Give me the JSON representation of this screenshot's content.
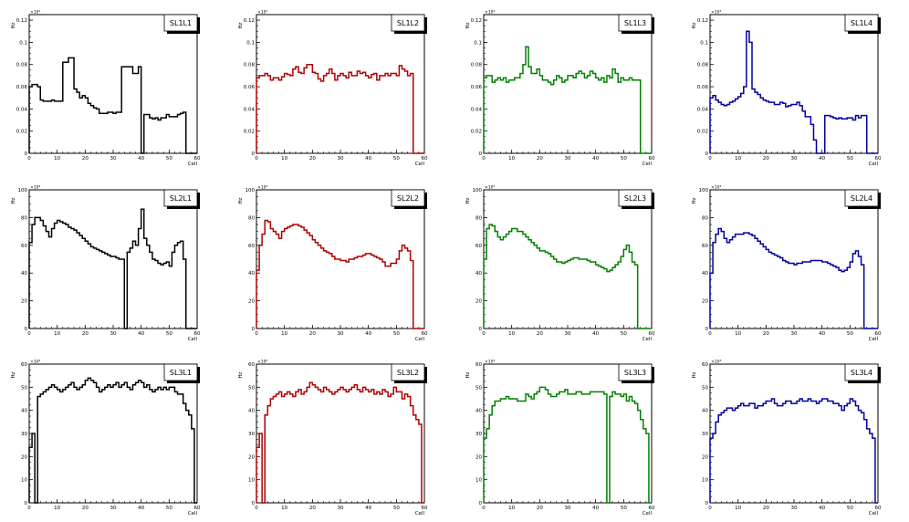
{
  "chart_data": [
    {
      "type": "line",
      "title": "SL1L1",
      "color": "#000000",
      "xlabel": "Cell",
      "ylabel": "Hz",
      "exponent": "×10³",
      "xlim": [
        0,
        60
      ],
      "ylim": [
        0,
        0.125
      ],
      "xticks": [
        0,
        10,
        20,
        30,
        40,
        50,
        60
      ],
      "yticks": [
        0,
        0.02,
        0.04,
        0.06,
        0.08,
        0.1,
        0.12
      ],
      "ytick_labels": [
        "0",
        "0.02",
        "0.04",
        "0.06",
        "0.08",
        "0.1",
        "0.12"
      ],
      "values": [
        0.06,
        0.062,
        0.062,
        0.06,
        0.048,
        0.047,
        0.047,
        0.047,
        0.048,
        0.047,
        0.047,
        0.047,
        0.082,
        0.082,
        0.086,
        0.086,
        0.058,
        0.055,
        0.05,
        0.052,
        0.05,
        0.045,
        0.043,
        0.041,
        0.04,
        0.036,
        0.036,
        0.036,
        0.037,
        0.037,
        0.036,
        0.037,
        0.037,
        0.078,
        0.078,
        0.078,
        0.078,
        0.072,
        0.072,
        0.078,
        0,
        0.035,
        0.035,
        0.032,
        0.031,
        0.032,
        0.03,
        0.032,
        0.032,
        0.035,
        0.033,
        0.033,
        0.033,
        0.035,
        0.036,
        0.037,
        0,
        0,
        0,
        0
      ]
    },
    {
      "type": "line",
      "title": "SL1L2",
      "color": "#b00000",
      "xlabel": "Cell",
      "ylabel": "Hz",
      "exponent": "×10³",
      "xlim": [
        0,
        60
      ],
      "ylim": [
        0,
        0.125
      ],
      "xticks": [
        0,
        10,
        20,
        30,
        40,
        50,
        60
      ],
      "yticks": [
        0,
        0.02,
        0.04,
        0.06,
        0.08,
        0.1,
        0.12
      ],
      "ytick_labels": [
        "0",
        "0.02",
        "0.04",
        "0.06",
        "0.08",
        "0.1",
        "0.12"
      ],
      "values": [
        0.068,
        0.07,
        0.07,
        0.072,
        0.07,
        0.066,
        0.068,
        0.068,
        0.066,
        0.069,
        0.072,
        0.071,
        0.07,
        0.076,
        0.078,
        0.073,
        0.072,
        0.077,
        0.08,
        0.08,
        0.073,
        0.072,
        0.067,
        0.065,
        0.07,
        0.072,
        0.076,
        0.072,
        0.066,
        0.07,
        0.072,
        0.07,
        0.068,
        0.073,
        0.07,
        0.07,
        0.074,
        0.072,
        0.073,
        0.07,
        0.068,
        0.071,
        0.072,
        0.066,
        0.07,
        0.07,
        0.072,
        0.07,
        0.072,
        0.072,
        0.07,
        0.079,
        0.076,
        0.074,
        0.07,
        0.072,
        0,
        0,
        0,
        0
      ]
    },
    {
      "type": "line",
      "title": "SL1L3",
      "color": "#008000",
      "xlabel": "Cell",
      "ylabel": "Hz",
      "exponent": "×10³",
      "xlim": [
        0,
        60
      ],
      "ylim": [
        0,
        0.125
      ],
      "xticks": [
        0,
        10,
        20,
        30,
        40,
        50,
        60
      ],
      "yticks": [
        0,
        0.02,
        0.04,
        0.06,
        0.08,
        0.1,
        0.12
      ],
      "ytick_labels": [
        "0",
        "0.02",
        "0.04",
        "0.06",
        "0.08",
        "0.1",
        "0.12"
      ],
      "values": [
        0.068,
        0.07,
        0.07,
        0.064,
        0.066,
        0.068,
        0.066,
        0.068,
        0.064,
        0.066,
        0.066,
        0.068,
        0.068,
        0.072,
        0.08,
        0.096,
        0.078,
        0.072,
        0.072,
        0.076,
        0.07,
        0.066,
        0.066,
        0.064,
        0.062,
        0.066,
        0.07,
        0.068,
        0.064,
        0.066,
        0.07,
        0.07,
        0.068,
        0.072,
        0.074,
        0.072,
        0.068,
        0.07,
        0.074,
        0.072,
        0.068,
        0.066,
        0.068,
        0.064,
        0.07,
        0.068,
        0.076,
        0.072,
        0.064,
        0.068,
        0.066,
        0.066,
        0.068,
        0.066,
        0.066,
        0.066,
        0,
        0,
        0,
        0
      ]
    },
    {
      "type": "line",
      "title": "SL1L4",
      "color": "#0000a0",
      "xlabel": "Cell",
      "ylabel": "Hz",
      "exponent": "×10³",
      "xlim": [
        0,
        60
      ],
      "ylim": [
        0,
        0.125
      ],
      "xticks": [
        0,
        10,
        20,
        30,
        40,
        50,
        60
      ],
      "yticks": [
        0,
        0.02,
        0.04,
        0.06,
        0.08,
        0.1,
        0.12
      ],
      "ytick_labels": [
        "0",
        "0.02",
        "0.04",
        "0.06",
        "0.08",
        "0.1",
        "0.12"
      ],
      "values": [
        0.05,
        0.052,
        0.048,
        0.046,
        0.044,
        0.043,
        0.044,
        0.046,
        0.047,
        0.049,
        0.051,
        0.054,
        0.06,
        0.11,
        0.1,
        0.058,
        0.055,
        0.053,
        0.05,
        0.048,
        0.047,
        0.046,
        0.046,
        0.044,
        0.044,
        0.046,
        0.045,
        0.042,
        0.043,
        0.044,
        0.044,
        0.046,
        0.043,
        0.038,
        0.033,
        0.033,
        0.026,
        0.012,
        0,
        0,
        0,
        0.034,
        0.034,
        0.033,
        0.032,
        0.031,
        0.032,
        0.031,
        0.031,
        0.032,
        0.032,
        0.03,
        0.034,
        0.032,
        0.034,
        0.034,
        0,
        0,
        0,
        0
      ]
    },
    {
      "type": "line",
      "title": "SL2L1",
      "color": "#000000",
      "xlabel": "Cell",
      "ylabel": "Hz",
      "exponent": "×10³",
      "xlim": [
        0,
        60
      ],
      "ylim": [
        0,
        100
      ],
      "xticks": [
        0,
        10,
        20,
        30,
        40,
        50,
        60
      ],
      "yticks": [
        0,
        20,
        40,
        60,
        80,
        100
      ],
      "ytick_labels": [
        "0",
        "20",
        "40",
        "60",
        "80",
        "100"
      ],
      "values": [
        62,
        75,
        80,
        80,
        78,
        74,
        70,
        66,
        72,
        76,
        78,
        77,
        76,
        75,
        73,
        72,
        71,
        69,
        67,
        65,
        63,
        61,
        59,
        58,
        57,
        56,
        55,
        54,
        53,
        52,
        52,
        51,
        50,
        50,
        0,
        55,
        58,
        63,
        60,
        72,
        86,
        65,
        60,
        55,
        50,
        49,
        47,
        46,
        47,
        48,
        45,
        55,
        60,
        62,
        63,
        50,
        0,
        0,
        0,
        0
      ]
    },
    {
      "type": "line",
      "title": "SL2L2",
      "color": "#b00000",
      "xlabel": "Cell",
      "ylabel": "Hz",
      "exponent": "×10³",
      "xlim": [
        0,
        60
      ],
      "ylim": [
        0,
        100
      ],
      "xticks": [
        0,
        10,
        20,
        30,
        40,
        50,
        60
      ],
      "yticks": [
        0,
        20,
        40,
        60,
        80,
        100
      ],
      "ytick_labels": [
        "0",
        "20",
        "40",
        "60",
        "80",
        "100"
      ],
      "values": [
        42,
        60,
        68,
        78,
        77,
        72,
        70,
        68,
        65,
        70,
        72,
        73,
        74,
        75,
        75,
        74,
        73,
        71,
        69,
        67,
        64,
        62,
        60,
        58,
        56,
        55,
        54,
        52,
        50,
        50,
        49,
        49,
        48,
        50,
        50,
        51,
        52,
        52,
        53,
        54,
        54,
        53,
        52,
        51,
        50,
        48,
        45,
        45,
        47,
        47,
        50,
        56,
        60,
        58,
        56,
        49,
        0,
        0,
        0,
        0
      ]
    },
    {
      "type": "line",
      "title": "SL2L3",
      "color": "#008000",
      "xlabel": "Cell",
      "ylabel": "Hz",
      "exponent": "×10³",
      "xlim": [
        0,
        60
      ],
      "ylim": [
        0,
        100
      ],
      "xticks": [
        0,
        10,
        20,
        30,
        40,
        50,
        60
      ],
      "yticks": [
        0,
        20,
        40,
        60,
        80,
        100
      ],
      "ytick_labels": [
        "0",
        "20",
        "40",
        "60",
        "80",
        "100"
      ],
      "values": [
        50,
        72,
        75,
        74,
        70,
        66,
        64,
        66,
        68,
        70,
        72,
        72,
        70,
        70,
        68,
        66,
        64,
        62,
        60,
        58,
        56,
        56,
        55,
        54,
        52,
        50,
        48,
        48,
        47,
        48,
        49,
        50,
        51,
        51,
        50,
        50,
        50,
        49,
        48,
        48,
        46,
        45,
        44,
        43,
        41,
        42,
        44,
        46,
        48,
        52,
        57,
        60,
        55,
        48,
        46,
        0,
        0,
        0,
        0,
        0
      ]
    },
    {
      "type": "line",
      "title": "SL2L4",
      "color": "#0000a0",
      "xlabel": "Cell",
      "ylabel": "Hz",
      "exponent": "×10³",
      "xlim": [
        0,
        60
      ],
      "ylim": [
        0,
        100
      ],
      "xticks": [
        0,
        10,
        20,
        30,
        40,
        50,
        60
      ],
      "yticks": [
        0,
        20,
        40,
        60,
        80,
        100
      ],
      "ytick_labels": [
        "0",
        "20",
        "40",
        "60",
        "80",
        "100"
      ],
      "values": [
        40,
        62,
        68,
        72,
        70,
        65,
        62,
        64,
        66,
        68,
        68,
        68,
        69,
        69,
        68,
        67,
        65,
        63,
        61,
        59,
        57,
        55,
        54,
        53,
        52,
        51,
        49,
        48,
        47,
        47,
        46,
        47,
        47,
        48,
        48,
        48,
        49,
        49,
        49,
        49,
        48,
        48,
        47,
        46,
        45,
        44,
        42,
        41,
        42,
        44,
        48,
        54,
        56,
        52,
        46,
        0,
        0,
        0,
        0,
        0
      ]
    },
    {
      "type": "line",
      "title": "SL3L1",
      "color": "#000000",
      "xlabel": "Cell",
      "ylabel": "Hz",
      "exponent": "×10³",
      "xlim": [
        0,
        60
      ],
      "ylim": [
        0,
        60
      ],
      "xticks": [
        0,
        10,
        20,
        30,
        40,
        50,
        60
      ],
      "yticks": [
        0,
        10,
        20,
        30,
        40,
        50,
        60
      ],
      "ytick_labels": [
        "0",
        "10",
        "20",
        "30",
        "40",
        "50",
        "60"
      ],
      "values": [
        24,
        30,
        0,
        46,
        47,
        48,
        49,
        50,
        51,
        50,
        49,
        48,
        49,
        50,
        51,
        52,
        50,
        49,
        50,
        51,
        53,
        54,
        53,
        52,
        50,
        48,
        49,
        50,
        51,
        50,
        51,
        52,
        50,
        51,
        52,
        50,
        49,
        51,
        52,
        53,
        52,
        50,
        51,
        49,
        48,
        49,
        50,
        49,
        50,
        49,
        50,
        50,
        48,
        47,
        47,
        43,
        40,
        38,
        32,
        0
      ]
    },
    {
      "type": "line",
      "title": "SL3L2",
      "color": "#b00000",
      "xlabel": "Cell",
      "ylabel": "Hz",
      "exponent": "×10³",
      "xlim": [
        0,
        60
      ],
      "ylim": [
        0,
        60
      ],
      "xticks": [
        0,
        10,
        20,
        30,
        40,
        50,
        60
      ],
      "yticks": [
        0,
        10,
        20,
        30,
        40,
        50,
        60
      ],
      "ytick_labels": [
        "0",
        "10",
        "20",
        "30",
        "40",
        "50",
        "60"
      ],
      "values": [
        24,
        30,
        0,
        38,
        42,
        45,
        46,
        47,
        48,
        46,
        47,
        48,
        47,
        46,
        48,
        49,
        47,
        48,
        50,
        52,
        51,
        50,
        49,
        48,
        50,
        49,
        48,
        47,
        48,
        49,
        50,
        49,
        48,
        49,
        50,
        51,
        49,
        48,
        50,
        49,
        48,
        49,
        47,
        48,
        47,
        49,
        48,
        46,
        47,
        50,
        48,
        48,
        45,
        47,
        46,
        42,
        38,
        36,
        34,
        0
      ]
    },
    {
      "type": "line",
      "title": "SL3L3",
      "color": "#008000",
      "xlabel": "Cell",
      "ylabel": "Hz",
      "exponent": "×10³",
      "xlim": [
        0,
        60
      ],
      "ylim": [
        0,
        60
      ],
      "xticks": [
        0,
        10,
        20,
        30,
        40,
        50,
        60
      ],
      "yticks": [
        0,
        10,
        20,
        30,
        40,
        50,
        60
      ],
      "ytick_labels": [
        "0",
        "10",
        "20",
        "30",
        "40",
        "50",
        "60"
      ],
      "values": [
        28,
        32,
        38,
        42,
        44,
        44,
        45,
        45,
        46,
        45,
        45,
        45,
        44,
        44,
        44,
        47,
        46,
        45,
        47,
        48,
        50,
        50,
        49,
        47,
        46,
        46,
        47,
        48,
        48,
        49,
        47,
        47,
        47,
        48,
        48,
        47,
        47,
        47,
        48,
        48,
        48,
        48,
        48,
        47,
        0,
        46,
        48,
        47,
        47,
        46,
        47,
        44,
        46,
        44,
        43,
        40,
        36,
        32,
        30,
        0
      ]
    },
    {
      "type": "line",
      "title": "SL3L4",
      "color": "#0000a0",
      "xlabel": "Cell",
      "ylabel": "Hz",
      "exponent": "×10³",
      "xlim": [
        0,
        60
      ],
      "ylim": [
        0,
        60
      ],
      "xticks": [
        0,
        10,
        20,
        30,
        40,
        50,
        60
      ],
      "yticks": [
        0,
        10,
        20,
        30,
        40,
        50,
        60
      ],
      "ytick_labels": [
        "0",
        "10",
        "20",
        "30",
        "40",
        "50",
        "60"
      ],
      "values": [
        28,
        30,
        35,
        38,
        39,
        40,
        41,
        41,
        40,
        41,
        42,
        43,
        42,
        42,
        43,
        43,
        41,
        42,
        42,
        43,
        44,
        44,
        45,
        43,
        42,
        42,
        43,
        44,
        44,
        43,
        43,
        44,
        45,
        44,
        44,
        45,
        44,
        44,
        43,
        44,
        45,
        45,
        44,
        44,
        43,
        43,
        42,
        40,
        42,
        43,
        45,
        44,
        42,
        40,
        39,
        36,
        32,
        30,
        28,
        0
      ]
    }
  ]
}
